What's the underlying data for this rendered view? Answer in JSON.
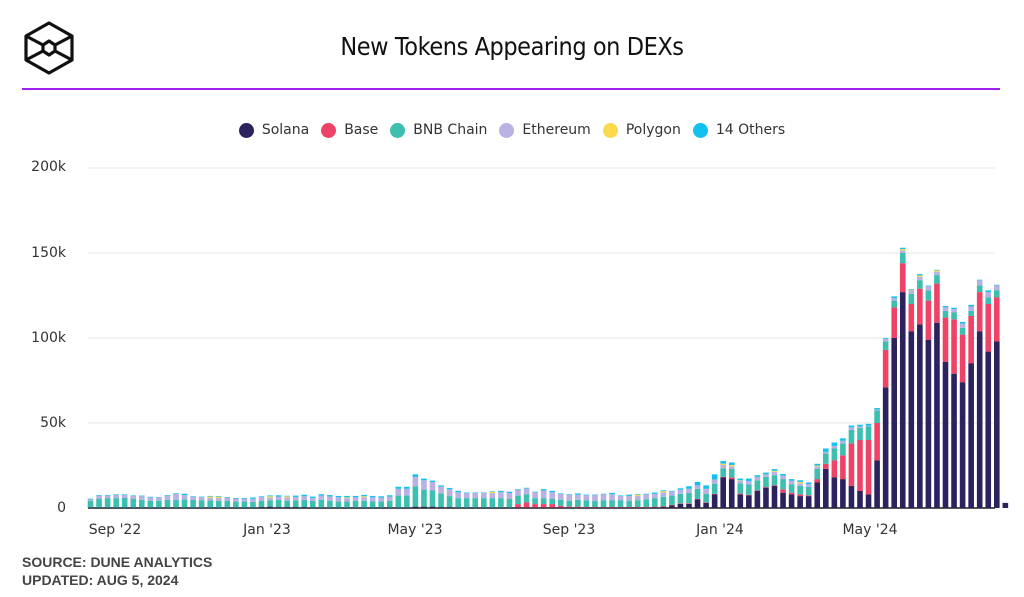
{
  "header": {
    "title": "New Tokens Appearing on DEXs",
    "logo_icon": "hexagon-cube-logo-icon",
    "divider_color": "#a020f0"
  },
  "legend": [
    {
      "label": "Solana",
      "color": "#2b225e"
    },
    {
      "label": "Base",
      "color": "#ee4266"
    },
    {
      "label": "BNB Chain",
      "color": "#3cbfae"
    },
    {
      "label": "Ethereum",
      "color": "#b9b0e4"
    },
    {
      "label": "Polygon",
      "color": "#fbd94a"
    },
    {
      "label": "14 Others",
      "color": "#12c2ee"
    }
  ],
  "footer": {
    "source": "SOURCE: DUNE ANALYTICS",
    "updated": "UPDATED: AUG 5, 2024"
  },
  "chart_data": {
    "type": "bar",
    "stacked": true,
    "title": "New Tokens Appearing on DEXs",
    "xlabel": "",
    "ylabel": "",
    "ylim": [
      0,
      200000
    ],
    "yticks": [
      "0",
      "50k",
      "100k",
      "150k",
      "200k"
    ],
    "xticks": [
      {
        "label": "Sep '22",
        "index": 3
      },
      {
        "label": "Jan '23",
        "index": 21
      },
      {
        "label": "May '23",
        "index": 38
      },
      {
        "label": "Sep '23",
        "index": 56
      },
      {
        "label": "Jan '24",
        "index": 73
      },
      {
        "label": "May '24",
        "index": 91
      }
    ],
    "grid": true,
    "legend_position": "top",
    "x_unit": "week",
    "series_order": [
      "Solana",
      "Base",
      "BNB Chain",
      "Ethereum",
      "Polygon",
      "14 Others"
    ],
    "values_unit": "thousands",
    "bars": [
      [
        0.3,
        0,
        3.8,
        1.2,
        0,
        0.2
      ],
      [
        0.3,
        0,
        5.2,
        1.8,
        0,
        0.3
      ],
      [
        0.3,
        0,
        5.3,
        1.7,
        0,
        0.3
      ],
      [
        0.3,
        0,
        5.5,
        2.0,
        0,
        0.3
      ],
      [
        0.3,
        0,
        5.6,
        1.8,
        0,
        0.3
      ],
      [
        0.3,
        0,
        5.0,
        1.8,
        0,
        0.3
      ],
      [
        0.3,
        0,
        4.5,
        2.2,
        0,
        0.3
      ],
      [
        0.3,
        0,
        4.0,
        2.0,
        0,
        0.3
      ],
      [
        0.3,
        0,
        4.0,
        1.8,
        0,
        0.3
      ],
      [
        0.3,
        0,
        4.5,
        2.5,
        0,
        0.3
      ],
      [
        0.3,
        0,
        4.5,
        3.5,
        0,
        0.4
      ],
      [
        0.3,
        0,
        4.8,
        2.5,
        0,
        0.8
      ],
      [
        0.3,
        0,
        4.5,
        1.8,
        0,
        0.3
      ],
      [
        0.3,
        0,
        4.3,
        1.8,
        0,
        0.3
      ],
      [
        0.3,
        0,
        4.2,
        1.5,
        0.8,
        0.3
      ],
      [
        0.3,
        0,
        3.8,
        1.8,
        0.8,
        0.3
      ],
      [
        0.3,
        0,
        4.0,
        1.8,
        0,
        0.3
      ],
      [
        0.3,
        0,
        3.5,
        1.8,
        0,
        0.3
      ],
      [
        0.3,
        0,
        3.5,
        1.8,
        0,
        0.3
      ],
      [
        0.3,
        0,
        3.3,
        1.8,
        0,
        0.8
      ],
      [
        0.5,
        0,
        3.6,
        2.5,
        0,
        0.3
      ],
      [
        0.8,
        0,
        3.8,
        1.5,
        0.8,
        0.5
      ],
      [
        0.5,
        0,
        4.2,
        2.0,
        0,
        0.8
      ],
      [
        0.5,
        0,
        3.8,
        1.8,
        0.8,
        0.3
      ],
      [
        0.5,
        0,
        4.0,
        2.0,
        0,
        0.8
      ],
      [
        0.5,
        0,
        4.3,
        2.2,
        0,
        0.8
      ],
      [
        0.3,
        0,
        3.8,
        1.8,
        0,
        0.8
      ],
      [
        0.3,
        0,
        4.5,
        2.5,
        0,
        0.8
      ],
      [
        0.3,
        0,
        4.0,
        2.5,
        0,
        0.8
      ],
      [
        0.3,
        0,
        3.5,
        2.5,
        0,
        0.8
      ],
      [
        0.3,
        0,
        3.5,
        2.0,
        0.5,
        0.8
      ],
      [
        0.3,
        0,
        4.0,
        2.0,
        0,
        0.8
      ],
      [
        0.3,
        0,
        4.0,
        2.0,
        0.6,
        0.8
      ],
      [
        0.3,
        0,
        3.5,
        2.5,
        0,
        0.8
      ],
      [
        0.3,
        0,
        3.6,
        2.2,
        0,
        0.8
      ],
      [
        0.3,
        0,
        4.0,
        2.4,
        0,
        0.8
      ],
      [
        0.3,
        0,
        7.0,
        4.0,
        0,
        1.2
      ],
      [
        0.3,
        0,
        7.0,
        4.0,
        0,
        1.2
      ],
      [
        0.8,
        0,
        12.0,
        5.5,
        0,
        1.5
      ],
      [
        0.8,
        0,
        10.0,
        5.5,
        0,
        1.0
      ],
      [
        0.8,
        0,
        9.5,
        5.0,
        0,
        0.8
      ],
      [
        0.5,
        0,
        8.0,
        4.0,
        0,
        0.8
      ],
      [
        0.5,
        0,
        6.5,
        4.0,
        0,
        0.8
      ],
      [
        0.3,
        0,
        5.5,
        3.5,
        0,
        0.8
      ],
      [
        0.3,
        0,
        5.5,
        3.0,
        0,
        0.3
      ],
      [
        0.3,
        0,
        5.5,
        3.0,
        0,
        0.3
      ],
      [
        0.3,
        0,
        5.5,
        3.0,
        0,
        0.3
      ],
      [
        0.3,
        0,
        5.5,
        3.0,
        0.8,
        0.3
      ],
      [
        0.3,
        0,
        5.5,
        3.5,
        0,
        0.8
      ],
      [
        0.3,
        0,
        5.0,
        3.5,
        0,
        0.8
      ],
      [
        0.3,
        2.0,
        5.0,
        3.5,
        0,
        0.3
      ],
      [
        0.3,
        3.0,
        4.8,
        3.5,
        0,
        0.3
      ],
      [
        0.3,
        2.0,
        3.5,
        3.5,
        0,
        0.3
      ],
      [
        0.3,
        2.0,
        3.5,
        4.5,
        0,
        0.8
      ],
      [
        0.3,
        2.0,
        3.0,
        4.0,
        0,
        0.8
      ],
      [
        0.3,
        1.0,
        3.5,
        3.5,
        0,
        0.3
      ],
      [
        0.3,
        0.5,
        3.5,
        3.5,
        0,
        0.3
      ],
      [
        0.3,
        0.5,
        4.0,
        3.0,
        0,
        0.8
      ],
      [
        0.3,
        0.3,
        4.0,
        3.0,
        0,
        0.3
      ],
      [
        0.3,
        0.3,
        3.5,
        3.5,
        0,
        0.3
      ],
      [
        0.3,
        0.3,
        4.0,
        3.5,
        0,
        0.3
      ],
      [
        0.3,
        0.3,
        4.0,
        3.5,
        0,
        0.8
      ],
      [
        0.3,
        0.3,
        4.0,
        2.5,
        0,
        0.3
      ],
      [
        0.3,
        0.3,
        3.5,
        3.0,
        0,
        0.8
      ],
      [
        0.3,
        0.3,
        4.0,
        2.5,
        0.8,
        0.3
      ],
      [
        0.3,
        0.3,
        4.5,
        3.0,
        0,
        0.3
      ],
      [
        0.5,
        0.3,
        5.0,
        2.5,
        0,
        0.8
      ],
      [
        0.8,
        0.3,
        5.5,
        2.5,
        0.8,
        0.5
      ],
      [
        1.5,
        0.3,
        5.5,
        2.5,
        0,
        0.3
      ],
      [
        2.5,
        0.3,
        5.5,
        2.5,
        0,
        0.8
      ],
      [
        2.5,
        0.3,
        6.0,
        2.5,
        0,
        1.5
      ],
      [
        5.0,
        0.3,
        6.0,
        2.0,
        0,
        2.0
      ],
      [
        3.0,
        0.3,
        5.0,
        3.0,
        0,
        2.0
      ],
      [
        8.0,
        0.3,
        6.0,
        2.5,
        0,
        3.0
      ],
      [
        18.0,
        0.3,
        5.0,
        2.0,
        0.8,
        1.5
      ],
      [
        17.0,
        1.0,
        5.0,
        1.5,
        0.8,
        1.5
      ],
      [
        8.0,
        0.5,
        6.0,
        1.5,
        0.3,
        1.0
      ],
      [
        7.5,
        0.3,
        6.0,
        2.0,
        0,
        1.5
      ],
      [
        10.0,
        0.3,
        6.0,
        2.0,
        0,
        1.0
      ],
      [
        12.0,
        0.3,
        6.0,
        1.5,
        0,
        1.0
      ],
      [
        13.0,
        0.3,
        6.0,
        2.0,
        0.6,
        1.0
      ],
      [
        9.0,
        2.0,
        6.0,
        2.0,
        0,
        1.0
      ],
      [
        8.0,
        1.0,
        5.0,
        2.0,
        0,
        1.0
      ],
      [
        7.0,
        1.0,
        5.0,
        1.5,
        0.8,
        1.0
      ],
      [
        7.0,
        0.5,
        5.0,
        1.5,
        0,
        1.0
      ],
      [
        15.0,
        2.0,
        6.0,
        1.5,
        0.5,
        1.0
      ],
      [
        23.0,
        3.0,
        6.0,
        1.0,
        0,
        2.0
      ],
      [
        18.0,
        10.0,
        7.0,
        1.5,
        0,
        2.0
      ],
      [
        17.0,
        14.0,
        7.0,
        1.5,
        0,
        1.5
      ],
      [
        13.0,
        25.0,
        8.0,
        1.5,
        0,
        1.0
      ],
      [
        10.0,
        30.0,
        7.0,
        1.0,
        0,
        1.0
      ],
      [
        8.0,
        32.0,
        8.0,
        0.5,
        0,
        1.0
      ],
      [
        28.0,
        22.0,
        7.5,
        0.5,
        0,
        0.8
      ],
      [
        71.0,
        22.0,
        5.0,
        1.5,
        0,
        0.5
      ],
      [
        100.0,
        18.0,
        4.0,
        1.5,
        0,
        1.0
      ],
      [
        127.0,
        17.0,
        6.0,
        1.5,
        0.8,
        0.8
      ],
      [
        104.0,
        16.0,
        6.0,
        2.0,
        0.5,
        0.3
      ],
      [
        108.0,
        21.0,
        5.0,
        2.0,
        0.8,
        0.8
      ],
      [
        99.0,
        23.0,
        6.0,
        2.5,
        0,
        0.3
      ],
      [
        109.0,
        23.0,
        5.0,
        2.0,
        0.8,
        0.3
      ],
      [
        86.0,
        26.0,
        4.0,
        2.0,
        0,
        0.8
      ],
      [
        79.0,
        32.0,
        4.0,
        2.0,
        0,
        0.8
      ],
      [
        74.0,
        28.0,
        4.0,
        2.5,
        0,
        1.0
      ],
      [
        85.0,
        28.0,
        3.0,
        2.5,
        0,
        1.0
      ],
      [
        104.0,
        23.0,
        4.0,
        3.0,
        0,
        0.3
      ],
      [
        92.0,
        28.0,
        4.0,
        3.0,
        0,
        1.0
      ],
      [
        98.0,
        26.0,
        4.0,
        3.0,
        0,
        0.3
      ],
      [
        3.0,
        0,
        0,
        0,
        0,
        0
      ]
    ]
  }
}
